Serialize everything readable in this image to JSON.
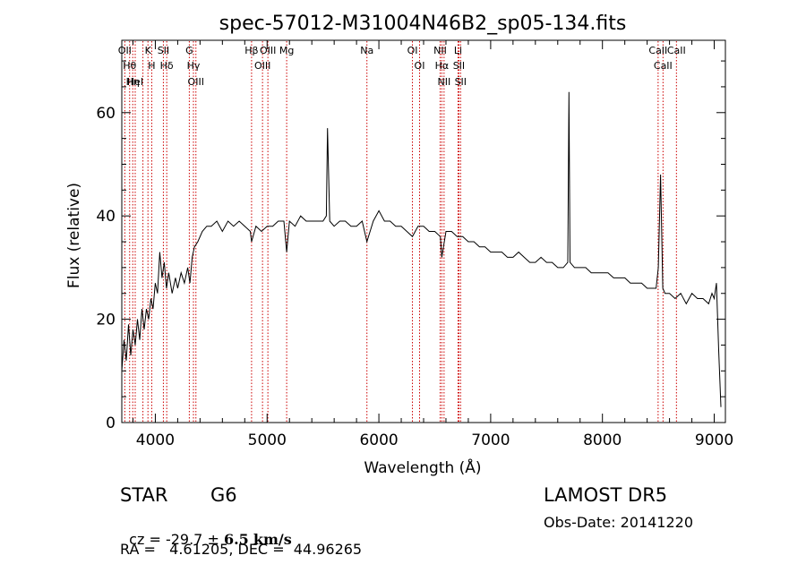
{
  "chart_data": {
    "type": "line",
    "title": "spec-57012-M31004N46B2_sp05-134.fits",
    "xlabel": "Wavelength (Å)",
    "ylabel": "Flux (relative)",
    "xlim": [
      3700,
      9100
    ],
    "ylim": [
      0,
      74
    ],
    "x_ticks": [
      4000,
      5000,
      6000,
      7000,
      8000,
      9000
    ],
    "x_tick_labels": [
      "4000",
      "5000",
      "6000",
      "7000",
      "8000",
      "9000"
    ],
    "y_ticks": [
      0,
      20,
      40,
      60
    ],
    "y_tick_labels": [
      "0",
      "20",
      "40",
      "60"
    ],
    "grid": false,
    "series": [
      {
        "x": [
          3700,
          3720,
          3740,
          3760,
          3780,
          3800,
          3820,
          3840,
          3860,
          3880,
          3900,
          3920,
          3940,
          3960,
          3980,
          4000,
          4020,
          4040,
          4060,
          4080,
          4100,
          4120,
          4150,
          4180,
          4200,
          4230,
          4260,
          4290,
          4310,
          4330,
          4350,
          4380,
          4420,
          4460,
          4500,
          4550,
          4600,
          4650,
          4700,
          4750,
          4800,
          4850,
          4861,
          4900,
          4950,
          5000,
          5050,
          5100,
          5150,
          5175,
          5200,
          5250,
          5300,
          5350,
          5400,
          5450,
          5500,
          5530,
          5540,
          5560,
          5600,
          5650,
          5700,
          5750,
          5800,
          5850,
          5893,
          5950,
          6000,
          6050,
          6100,
          6150,
          6200,
          6250,
          6300,
          6350,
          6400,
          6450,
          6500,
          6550,
          6563,
          6600,
          6650,
          6700,
          6750,
          6800,
          6850,
          6900,
          6950,
          7000,
          7050,
          7100,
          7150,
          7200,
          7250,
          7300,
          7350,
          7400,
          7450,
          7500,
          7550,
          7600,
          7650,
          7690,
          7700,
          7710,
          7750,
          7800,
          7850,
          7900,
          7950,
          8000,
          8050,
          8100,
          8150,
          8200,
          8250,
          8300,
          8350,
          8400,
          8450,
          8480,
          8500,
          8520,
          8540,
          8560,
          8600,
          8650,
          8700,
          8750,
          8800,
          8850,
          8900,
          8950,
          8980,
          9000,
          9020,
          9040,
          9060
        ],
        "y": [
          10,
          16,
          12,
          19,
          13,
          18,
          15,
          20,
          16,
          22,
          18,
          22,
          20,
          24,
          22,
          27,
          25,
          33,
          28,
          31,
          26,
          29,
          25,
          28,
          26,
          29,
          27,
          30,
          27,
          32,
          34,
          35,
          37,
          38,
          38,
          39,
          37,
          39,
          38,
          39,
          38,
          37,
          35,
          38,
          37,
          38,
          38,
          39,
          39,
          33,
          39,
          38,
          40,
          39,
          39,
          39,
          39,
          40,
          57,
          39,
          38,
          39,
          39,
          38,
          38,
          39,
          35,
          39,
          41,
          39,
          39,
          38,
          38,
          37,
          36,
          38,
          38,
          37,
          37,
          36,
          32,
          37,
          37,
          36,
          36,
          35,
          35,
          34,
          34,
          33,
          33,
          33,
          32,
          32,
          33,
          32,
          31,
          31,
          32,
          31,
          31,
          30,
          30,
          31,
          64,
          31,
          30,
          30,
          30,
          29,
          29,
          29,
          29,
          28,
          28,
          28,
          27,
          27,
          27,
          26,
          26,
          26,
          30,
          48,
          26,
          25,
          25,
          24,
          25,
          23,
          25,
          24,
          24,
          23,
          25,
          24,
          27,
          14,
          3
        ]
      }
    ],
    "lines": [
      {
        "x": 3727,
        "labels": [
          "OII"
        ]
      },
      {
        "x": 3770,
        "labels": [
          "Hθ"
        ]
      },
      {
        "x": 3798,
        "labels": [
          "Hη"
        ]
      },
      {
        "x": 3820,
        "labels": [
          "HeI"
        ]
      },
      {
        "x": 3889,
        "labels": [
          ""
        ]
      },
      {
        "x": 3934,
        "labels": [
          "K"
        ]
      },
      {
        "x": 3968,
        "labels": [
          "H"
        ]
      },
      {
        "x": 4072,
        "labels": [
          "SII"
        ]
      },
      {
        "x": 4102,
        "labels": [
          "Hδ"
        ]
      },
      {
        "x": 4304,
        "labels": [
          "G"
        ]
      },
      {
        "x": 4341,
        "labels": [
          "Hγ"
        ]
      },
      {
        "x": 4363,
        "labels": [
          "OIII"
        ]
      },
      {
        "x": 4861,
        "labels": [
          "Hβ"
        ]
      },
      {
        "x": 4959,
        "labels": [
          "OIII"
        ]
      },
      {
        "x": 5007,
        "labels": [
          "OIII"
        ]
      },
      {
        "x": 5175,
        "labels": [
          "Mg"
        ]
      },
      {
        "x": 5893,
        "labels": [
          "Na"
        ]
      },
      {
        "x": 6300,
        "labels": [
          "OI"
        ]
      },
      {
        "x": 6364,
        "labels": [
          "OI"
        ]
      },
      {
        "x": 6548,
        "labels": [
          "NII"
        ]
      },
      {
        "x": 6563,
        "labels": [
          "Hα"
        ]
      },
      {
        "x": 6583,
        "labels": [
          "NII"
        ]
      },
      {
        "x": 6708,
        "labels": [
          "Li"
        ]
      },
      {
        "x": 6716,
        "labels": [
          "SII"
        ]
      },
      {
        "x": 6731,
        "labels": [
          "SII"
        ]
      },
      {
        "x": 8498,
        "labels": [
          "CaII"
        ]
      },
      {
        "x": 8542,
        "labels": [
          "CaII"
        ]
      },
      {
        "x": 8662,
        "labels": [
          "CaII"
        ]
      }
    ],
    "line_label_texts": {
      "OII": "OII",
      "Htheta": "Hθ",
      "Heta": "Hη",
      "HeI": "HeI",
      "K": "K",
      "H": "H",
      "SII": "SII",
      "Hdelta": "Hδ",
      "G": "G",
      "Hgamma": "Hγ",
      "OIII": "OIII",
      "Hbeta": "Hβ",
      "Mg": "Mg",
      "Na": "Na",
      "OI": "OI",
      "NII": "NII",
      "Halpha": "Hα",
      "Li": "Li",
      "CaII": "CaII"
    },
    "colors": {
      "spectrum": "#000000",
      "lines": "#cc0000",
      "axes": "#000000"
    }
  },
  "info": {
    "class_label": "STAR",
    "subclass": "G6",
    "survey": "LAMOST DR5",
    "cz_prefix": "cz = ",
    "cz_value": "-29.7",
    "cz_pm": "±",
    "cz_err": "6.5",
    "cz_unit": "km/s",
    "obs_date": "Obs-Date: 20141220",
    "radec": "RA =   4.61205, DEC =  44.96265"
  }
}
